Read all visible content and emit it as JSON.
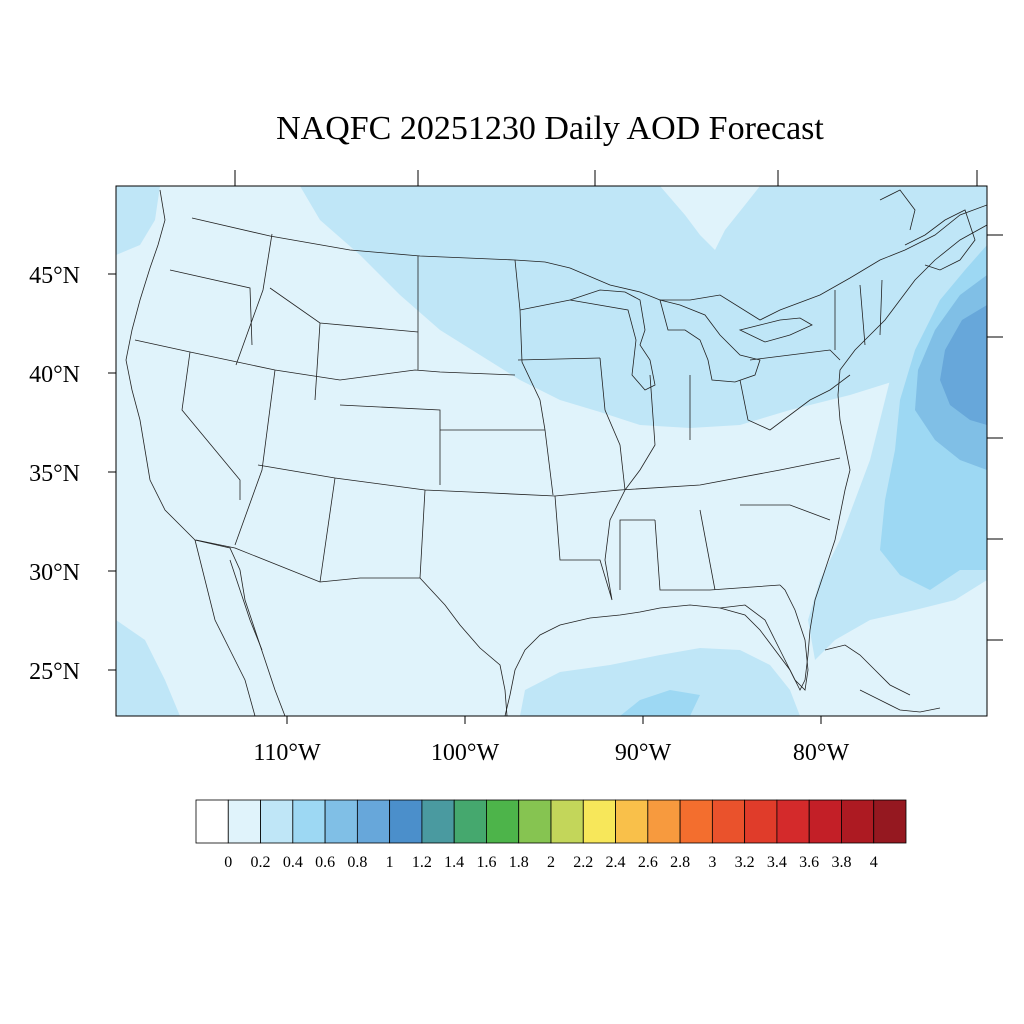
{
  "title": "NAQFC 20251230 Daily AOD Forecast",
  "map": {
    "lat_labels": [
      {
        "text": "45°N",
        "lat": 45
      },
      {
        "text": "40°N",
        "lat": 40
      },
      {
        "text": "35°N",
        "lat": 35
      },
      {
        "text": "30°N",
        "lat": 30
      },
      {
        "text": "25°N",
        "lat": 25
      }
    ],
    "lon_labels": [
      {
        "text": "110°W",
        "lon": -110
      },
      {
        "text": "100°W",
        "lon": -100
      },
      {
        "text": "90°W",
        "lon": -90
      },
      {
        "text": "80°W",
        "lon": -80
      }
    ]
  },
  "colorbar": {
    "labels": [
      "0",
      "0.2",
      "0.4",
      "0.6",
      "0.8",
      "1",
      "1.2",
      "1.4",
      "1.6",
      "1.8",
      "2",
      "2.2",
      "2.4",
      "2.6",
      "2.8",
      "3",
      "3.2",
      "3.4",
      "3.6",
      "3.8",
      "4"
    ],
    "colors": [
      "#ffffff",
      "#e0f3fb",
      "#bfe6f7",
      "#9dd8f3",
      "#80bfe6",
      "#67a7da",
      "#4b8fcb",
      "#4a9aa0",
      "#45a86e",
      "#4db44a",
      "#86c451",
      "#c3d65a",
      "#f7e75a",
      "#f9c04a",
      "#f79a3e",
      "#f36e2e",
      "#ea522c",
      "#e03c2a",
      "#d42a2b",
      "#c31f27",
      "#ad1a22",
      "#951820"
    ]
  },
  "aod_colors": {
    "light": "#e0f3fb",
    "medium": "#bfe6f7",
    "blue": "#9dd8f3",
    "darker": "#80bfe6",
    "darkest": "#67a7da"
  }
}
